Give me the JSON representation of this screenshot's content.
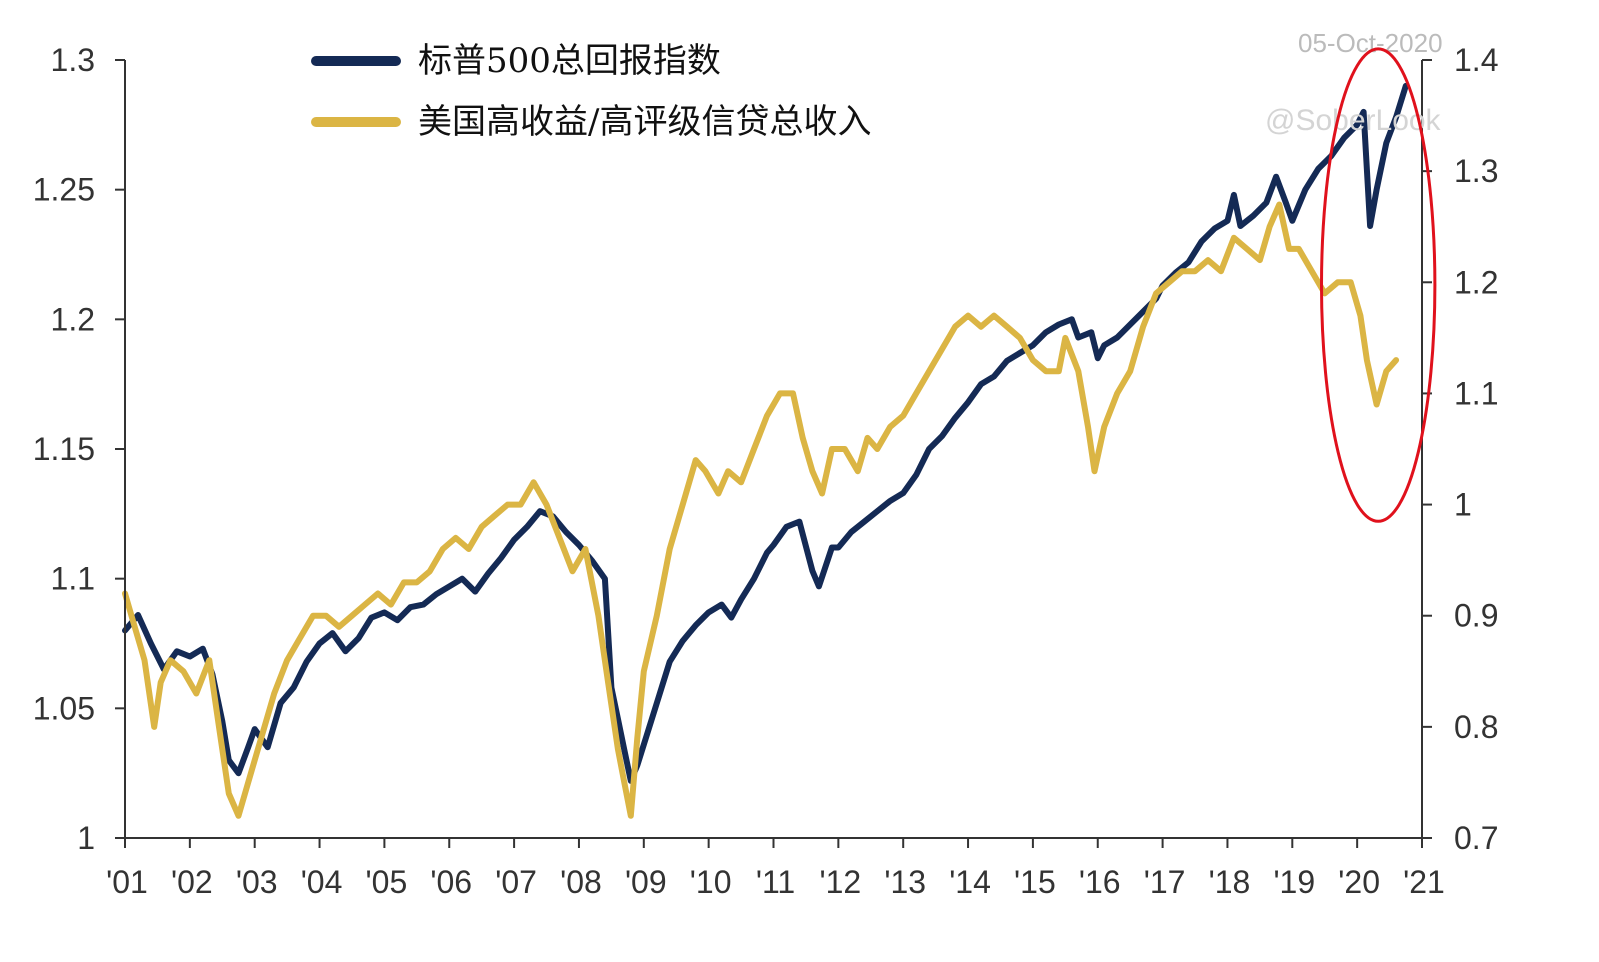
{
  "chart_data": {
    "type": "line",
    "watermark_date": "05-Oct-2020",
    "watermark_handle": "@SoberLook",
    "colors": {
      "sp500": "#142a55",
      "hy_ig": "#dbb544",
      "axis": "#333333",
      "highlight": "#e0111c"
    },
    "x_axis": {
      "tick_labels": [
        "'01",
        "'02",
        "'03",
        "'04",
        "'05",
        "'06",
        "'07",
        "'08",
        "'09",
        "'10",
        "'11",
        "'12",
        "'13",
        "'14",
        "'15",
        "'16",
        "'17",
        "'18",
        "'19",
        "'20",
        "'21"
      ],
      "tick_years": [
        2001,
        2002,
        2003,
        2004,
        2005,
        2006,
        2007,
        2008,
        2009,
        2010,
        2011,
        2012,
        2013,
        2014,
        2015,
        2016,
        2017,
        2018,
        2019,
        2020,
        2021
      ],
      "range": [
        2001,
        2021
      ]
    },
    "y_left": {
      "range": [
        1.0,
        1.3
      ],
      "ticks": [
        1,
        1.05,
        1.1,
        1.15,
        1.2,
        1.25,
        1.3
      ],
      "tick_labels": [
        "1",
        "1.05",
        "1.1",
        "1.15",
        "1.2",
        "1.25",
        "1.3"
      ]
    },
    "y_right": {
      "range": [
        0.7,
        1.4
      ],
      "ticks": [
        0.7,
        0.8,
        0.9,
        1.0,
        1.1,
        1.2,
        1.3,
        1.4
      ],
      "tick_labels": [
        "0.7",
        "0.8",
        "0.9",
        "1",
        "1.1",
        "1.2",
        "1.3",
        "1.4"
      ]
    },
    "highlight": {
      "shape": "ellipse",
      "x_range": [
        2019.45,
        2021.2
      ],
      "y_right_range": [
        0.985,
        1.41
      ]
    },
    "series": [
      {
        "key": "sp500",
        "name": "标普500总回报指数",
        "axis": "left",
        "x": [
          2001.0,
          2001.2,
          2001.4,
          2001.6,
          2001.8,
          2002.0,
          2002.2,
          2002.35,
          2002.5,
          2002.6,
          2002.75,
          2002.9,
          2003.0,
          2003.2,
          2003.4,
          2003.6,
          2003.8,
          2004.0,
          2004.2,
          2004.4,
          2004.6,
          2004.8,
          2005.0,
          2005.2,
          2005.4,
          2005.6,
          2005.8,
          2006.0,
          2006.2,
          2006.4,
          2006.6,
          2006.8,
          2007.0,
          2007.2,
          2007.4,
          2007.6,
          2007.8,
          2008.0,
          2008.2,
          2008.4,
          2008.5,
          2008.6,
          2008.7,
          2008.8,
          2008.9,
          2009.0,
          2009.2,
          2009.4,
          2009.6,
          2009.8,
          2010.0,
          2010.2,
          2010.35,
          2010.5,
          2010.7,
          2010.9,
          2011.0,
          2011.2,
          2011.4,
          2011.6,
          2011.7,
          2011.9,
          2012.0,
          2012.2,
          2012.4,
          2012.6,
          2012.8,
          2013.0,
          2013.2,
          2013.4,
          2013.6,
          2013.8,
          2014.0,
          2014.2,
          2014.4,
          2014.6,
          2014.8,
          2015.0,
          2015.2,
          2015.4,
          2015.6,
          2015.7,
          2015.9,
          2016.0,
          2016.1,
          2016.3,
          2016.5,
          2016.7,
          2016.9,
          2017.0,
          2017.2,
          2017.4,
          2017.6,
          2017.8,
          2018.0,
          2018.1,
          2018.2,
          2018.4,
          2018.6,
          2018.75,
          2018.9,
          2019.0,
          2019.2,
          2019.4,
          2019.6,
          2019.8,
          2020.0,
          2020.1,
          2020.2,
          2020.3,
          2020.45,
          2020.6,
          2020.75
        ],
        "y": [
          1.08,
          1.086,
          1.075,
          1.065,
          1.072,
          1.07,
          1.073,
          1.063,
          1.045,
          1.03,
          1.025,
          1.035,
          1.042,
          1.035,
          1.052,
          1.058,
          1.068,
          1.075,
          1.079,
          1.072,
          1.077,
          1.085,
          1.087,
          1.084,
          1.089,
          1.09,
          1.094,
          1.097,
          1.1,
          1.095,
          1.102,
          1.108,
          1.115,
          1.12,
          1.126,
          1.124,
          1.118,
          1.113,
          1.107,
          1.1,
          1.058,
          1.046,
          1.034,
          1.022,
          1.028,
          1.036,
          1.052,
          1.068,
          1.076,
          1.082,
          1.087,
          1.09,
          1.085,
          1.092,
          1.1,
          1.11,
          1.113,
          1.12,
          1.122,
          1.103,
          1.097,
          1.112,
          1.112,
          1.118,
          1.122,
          1.126,
          1.13,
          1.133,
          1.14,
          1.15,
          1.155,
          1.162,
          1.168,
          1.175,
          1.178,
          1.184,
          1.187,
          1.19,
          1.195,
          1.198,
          1.2,
          1.193,
          1.195,
          1.185,
          1.19,
          1.193,
          1.198,
          1.203,
          1.208,
          1.213,
          1.218,
          1.222,
          1.23,
          1.235,
          1.238,
          1.248,
          1.236,
          1.24,
          1.245,
          1.255,
          1.245,
          1.238,
          1.25,
          1.258,
          1.263,
          1.27,
          1.275,
          1.28,
          1.236,
          1.25,
          1.268,
          1.278,
          1.29
        ]
      },
      {
        "key": "hy_ig",
        "name": "美国高收益/高评级信贷总收入",
        "axis": "right",
        "x": [
          2001.0,
          2001.15,
          2001.3,
          2001.45,
          2001.55,
          2001.7,
          2001.9,
          2002.1,
          2002.3,
          2002.45,
          2002.6,
          2002.75,
          2002.9,
          2003.1,
          2003.3,
          2003.5,
          2003.7,
          2003.9,
          2004.1,
          2004.3,
          2004.5,
          2004.7,
          2004.9,
          2005.1,
          2005.3,
          2005.5,
          2005.7,
          2005.9,
          2006.1,
          2006.3,
          2006.5,
          2006.7,
          2006.9,
          2007.1,
          2007.3,
          2007.5,
          2007.7,
          2007.9,
          2008.1,
          2008.3,
          2008.45,
          2008.6,
          2008.7,
          2008.8,
          2008.9,
          2009.0,
          2009.2,
          2009.4,
          2009.6,
          2009.8,
          2009.95,
          2010.15,
          2010.3,
          2010.5,
          2010.7,
          2010.9,
          2011.1,
          2011.3,
          2011.45,
          2011.6,
          2011.75,
          2011.9,
          2012.1,
          2012.3,
          2012.45,
          2012.6,
          2012.8,
          2013.0,
          2013.2,
          2013.4,
          2013.6,
          2013.8,
          2014.0,
          2014.2,
          2014.4,
          2014.6,
          2014.8,
          2015.0,
          2015.2,
          2015.4,
          2015.5,
          2015.7,
          2015.85,
          2015.95,
          2016.1,
          2016.3,
          2016.5,
          2016.7,
          2016.9,
          2017.1,
          2017.3,
          2017.5,
          2017.7,
          2017.9,
          2018.1,
          2018.3,
          2018.5,
          2018.65,
          2018.8,
          2018.95,
          2019.1,
          2019.3,
          2019.5,
          2019.7,
          2019.9,
          2020.05,
          2020.15,
          2020.3,
          2020.45,
          2020.6
        ],
        "y": [
          0.92,
          0.89,
          0.86,
          0.8,
          0.84,
          0.86,
          0.85,
          0.83,
          0.86,
          0.8,
          0.74,
          0.72,
          0.75,
          0.79,
          0.83,
          0.86,
          0.88,
          0.9,
          0.9,
          0.89,
          0.9,
          0.91,
          0.92,
          0.91,
          0.93,
          0.93,
          0.94,
          0.96,
          0.97,
          0.96,
          0.98,
          0.99,
          1.0,
          1.0,
          1.02,
          1.0,
          0.97,
          0.94,
          0.96,
          0.9,
          0.84,
          0.78,
          0.75,
          0.72,
          0.79,
          0.85,
          0.9,
          0.96,
          1.0,
          1.04,
          1.03,
          1.01,
          1.03,
          1.02,
          1.05,
          1.08,
          1.1,
          1.1,
          1.06,
          1.03,
          1.01,
          1.05,
          1.05,
          1.03,
          1.06,
          1.05,
          1.07,
          1.08,
          1.1,
          1.12,
          1.14,
          1.16,
          1.17,
          1.16,
          1.17,
          1.16,
          1.15,
          1.13,
          1.12,
          1.12,
          1.15,
          1.12,
          1.07,
          1.03,
          1.07,
          1.1,
          1.12,
          1.16,
          1.19,
          1.2,
          1.21,
          1.21,
          1.22,
          1.21,
          1.24,
          1.23,
          1.22,
          1.25,
          1.27,
          1.23,
          1.23,
          1.21,
          1.19,
          1.2,
          1.2,
          1.17,
          1.13,
          1.09,
          1.12,
          1.13
        ]
      }
    ]
  }
}
